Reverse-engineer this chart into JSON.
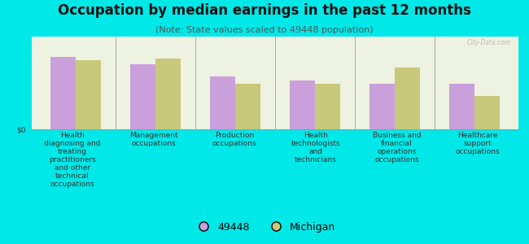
{
  "title": "Occupation by median earnings in the past 12 months",
  "subtitle": "(Note: State values scaled to 49448 population)",
  "background_color": "#00e8e8",
  "plot_bg_color": "#eef2e0",
  "categories": [
    "Health\ndiagnosing and\ntreating\npractitioners\nand other\ntechnical\noccupations",
    "Management\noccupations",
    "Production\noccupations",
    "Health\ntechnologists\nand\ntechnicians",
    "Business and\nfinancial\noperations\noccupations",
    "Healthcare\nsupport\noccupations"
  ],
  "values_49448": [
    0.82,
    0.74,
    0.6,
    0.55,
    0.52,
    0.52
  ],
  "values_michigan": [
    0.78,
    0.8,
    0.52,
    0.52,
    0.7,
    0.38
  ],
  "color_49448": "#c9a0dc",
  "color_michigan": "#c8c87a",
  "bar_width": 0.32,
  "ylabel": "$0",
  "legend_label_1": "49448",
  "legend_label_2": "Michigan",
  "title_fontsize": 12,
  "subtitle_fontsize": 8,
  "tick_fontsize": 6.5,
  "legend_fontsize": 9,
  "watermark": "City-Data.com"
}
